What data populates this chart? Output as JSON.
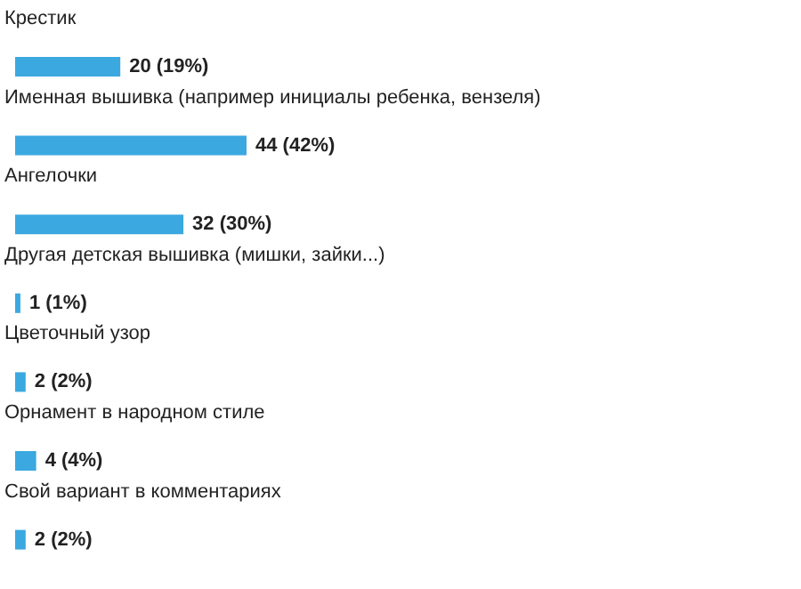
{
  "chart_data": {
    "type": "bar",
    "orientation": "horizontal",
    "categories": [
      "Крестик",
      "Именная вышивка (например инициалы ребенка, вензеля)",
      "Ангелочки",
      "Другая детская вышивка (мишки, зайки...)",
      "Цветочный узор",
      "Орнамент в народном стиле",
      "Свой вариант в комментариях"
    ],
    "values": [
      20,
      44,
      32,
      1,
      2,
      4,
      2
    ],
    "value_labels": [
      "20 (19%)",
      "44 (42%)",
      "32 (30%)",
      "1 (1%)",
      "2 (2%)",
      "4 (4%)",
      "2 (2%)"
    ],
    "color": "#3ba8e0",
    "grid": false
  }
}
